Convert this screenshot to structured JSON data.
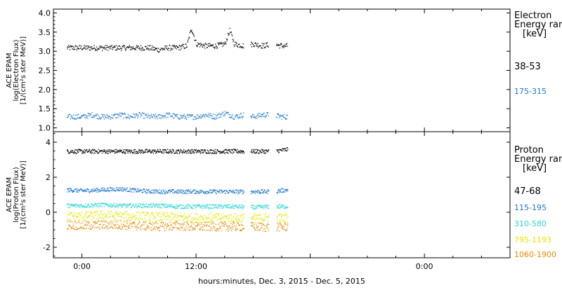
{
  "chart_data": [
    {
      "type": "scatter",
      "panel": "electron",
      "ylabel_lines": [
        "ACE EPAM",
        "log(Electron Flux)",
        "[1/(cm²s ster MeV)]"
      ],
      "ylim": [
        0.9,
        4.1
      ],
      "yticks": [
        "1.0",
        "1.5",
        "2.0",
        "2.5",
        "3.0",
        "3.5",
        "4.0"
      ],
      "legend_title": [
        "Electron",
        "Energy range",
        "[keV]"
      ],
      "series": [
        {
          "name": "38-53",
          "color": "#000000",
          "x": [
            -1.5,
            0,
            1,
            2,
            3,
            4,
            5,
            6,
            7,
            8,
            9,
            10,
            11,
            11.3,
            11.5,
            12,
            13,
            14,
            15,
            15.5,
            16,
            17,
            18,
            19,
            20,
            21,
            21.5
          ],
          "y": [
            3.1,
            3.1,
            3.1,
            3.1,
            3.1,
            3.1,
            3.1,
            3.1,
            3.1,
            3.05,
            3.1,
            3.1,
            3.15,
            3.45,
            3.6,
            3.2,
            3.15,
            3.15,
            3.2,
            3.55,
            3.2,
            3.15,
            3.2,
            3.15,
            3.2,
            3.15,
            3.15
          ]
        },
        {
          "name": "175-315",
          "color": "#1f77c8",
          "x": [
            -1.5,
            0,
            1,
            2,
            3,
            4,
            5,
            6,
            7,
            8,
            9,
            10,
            11,
            12,
            13,
            14,
            15,
            16,
            17,
            18,
            19,
            20,
            21,
            21.5
          ],
          "y": [
            1.3,
            1.3,
            1.35,
            1.3,
            1.3,
            1.35,
            1.3,
            1.35,
            1.3,
            1.3,
            1.35,
            1.3,
            1.3,
            1.3,
            1.35,
            1.3,
            1.4,
            1.3,
            1.35,
            1.3,
            1.35,
            1.35,
            1.3,
            1.3
          ]
        }
      ]
    },
    {
      "type": "scatter",
      "panel": "proton",
      "ylabel_lines": [
        "ACE EPAM",
        "log(Proton Flux)",
        "[1/(cm²s ster MeV)]"
      ],
      "ylim": [
        -2.6,
        4.6
      ],
      "yticks": [
        "-2",
        "0",
        "2",
        "4"
      ],
      "legend_title": [
        "Proton",
        "Energy range",
        "[keV]"
      ],
      "series": [
        {
          "name": "47-68",
          "color": "#000000",
          "x": [
            -1.5,
            0,
            2,
            4,
            6,
            8,
            10,
            12,
            14,
            16,
            18,
            20,
            21.5
          ],
          "y": [
            3.5,
            3.5,
            3.5,
            3.5,
            3.5,
            3.5,
            3.5,
            3.5,
            3.5,
            3.5,
            3.5,
            3.5,
            3.6
          ]
        },
        {
          "name": "115-195",
          "color": "#1f77c8",
          "x": [
            -1.5,
            0,
            2,
            4,
            6,
            8,
            10,
            12,
            14,
            16,
            18,
            20,
            21.5
          ],
          "y": [
            1.3,
            1.25,
            1.3,
            1.35,
            1.25,
            1.2,
            1.2,
            1.2,
            1.2,
            1.2,
            1.2,
            1.2,
            1.3
          ]
        },
        {
          "name": "310-580",
          "color": "#2fd3d3",
          "x": [
            -1.5,
            0,
            2,
            4,
            6,
            8,
            10,
            12,
            14,
            16,
            18,
            20,
            21.5
          ],
          "y": [
            0.4,
            0.4,
            0.45,
            0.4,
            0.4,
            0.4,
            0.35,
            0.35,
            0.35,
            0.35,
            0.3,
            0.35,
            0.35
          ]
        },
        {
          "name": "795-1193",
          "color": "#e6e600",
          "x": [
            -1.5,
            0,
            2,
            4,
            6,
            8,
            10,
            12,
            14,
            16,
            18,
            20,
            21.5
          ],
          "y": [
            -0.2,
            -0.2,
            -0.15,
            -0.2,
            -0.2,
            -0.25,
            -0.25,
            -0.3,
            -0.3,
            -0.3,
            -0.3,
            -0.3,
            -0.3
          ]
        },
        {
          "name": "1060-1900",
          "color": "#e68a00",
          "x": [
            -1.5,
            0,
            2,
            4,
            6,
            8,
            10,
            12,
            14,
            16,
            18,
            20,
            21.5
          ],
          "y": [
            -0.7,
            -0.75,
            -0.7,
            -0.7,
            -0.75,
            -0.8,
            -0.75,
            -0.8,
            -0.8,
            -0.8,
            -0.8,
            -0.85,
            -0.8
          ]
        }
      ]
    }
  ],
  "x_axis": {
    "range_hours": [
      -3,
      45
    ],
    "ticks": [
      {
        "hour": 0,
        "label": "0:00"
      },
      {
        "hour": 12,
        "label": "12:00"
      },
      {
        "hour": 36,
        "label": "0:00"
      }
    ],
    "xlabel": "hours:minutes, Dec.  3, 2015 - Dec.  5, 2015"
  }
}
